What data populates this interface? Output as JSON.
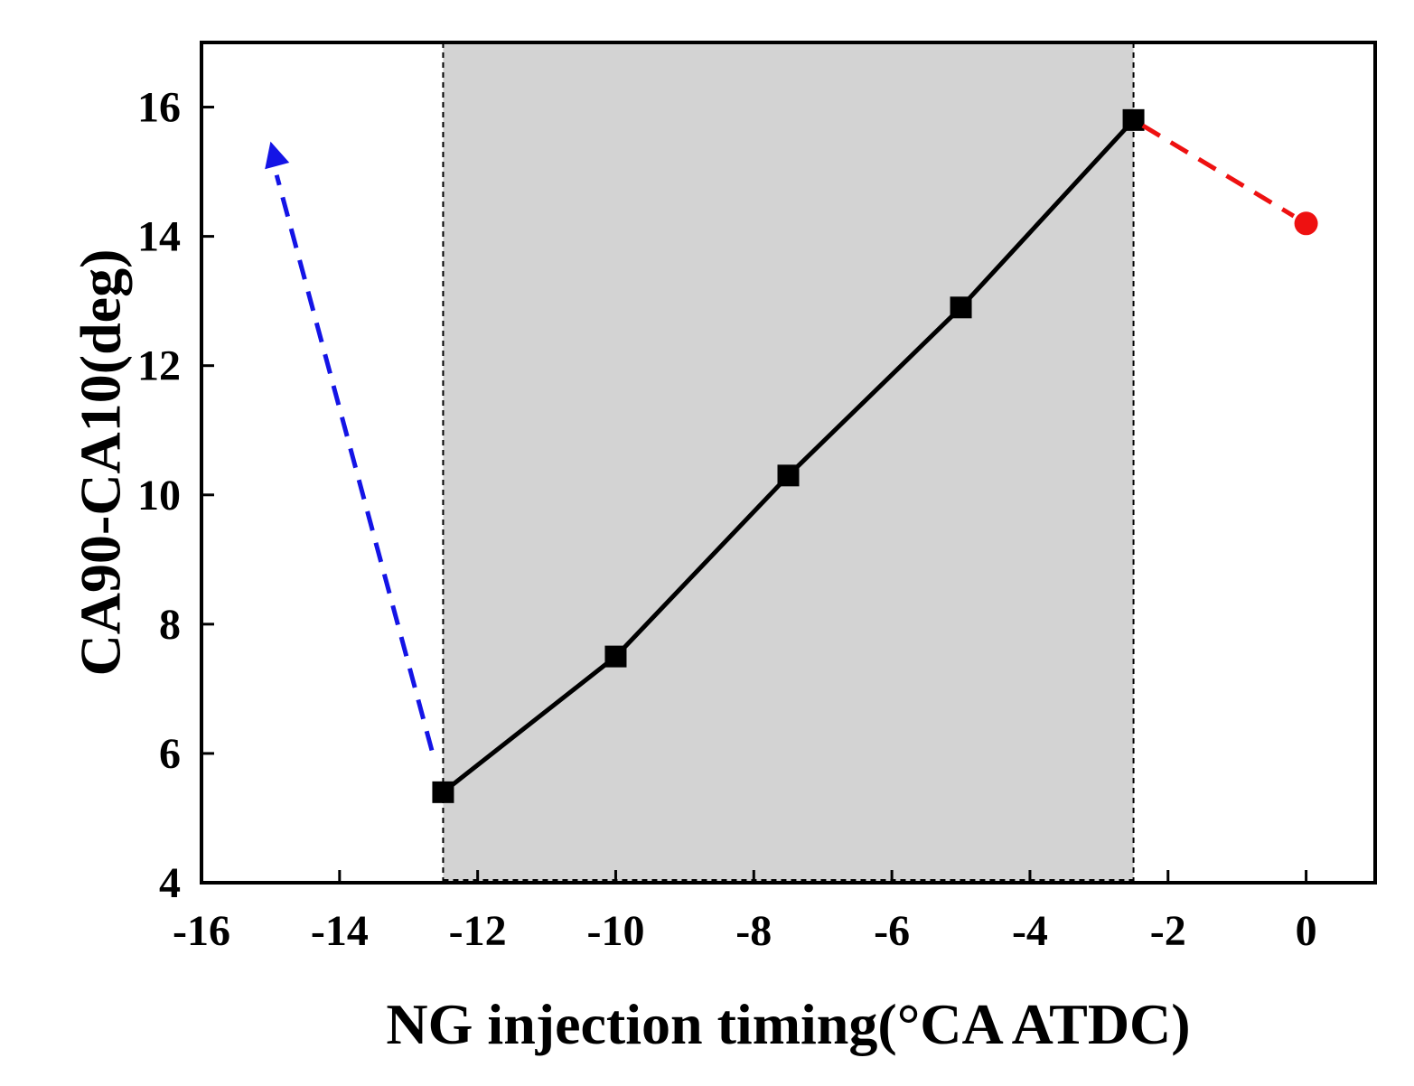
{
  "chart_data": {
    "type": "line",
    "title": "",
    "xlabel": "NG injection timing(°CA  ATDC)",
    "ylabel": "CA90-CA10(deg)",
    "xlim": [
      -16,
      1
    ],
    "ylim": [
      4,
      17
    ],
    "xticks": [
      -16,
      -14,
      -12,
      -10,
      -8,
      -6,
      -4,
      -2,
      0
    ],
    "yticks": [
      4,
      6,
      8,
      10,
      12,
      14,
      16
    ],
    "grid": false,
    "legend": "none",
    "shaded_region": {
      "x": [
        -12.5,
        -2.5
      ],
      "color": "#d3d3d3"
    },
    "reference_lines": [
      -12.5,
      -2.5
    ],
    "series": [
      {
        "name": "main",
        "style": "solid",
        "marker": "square",
        "color": "#000000",
        "x": [
          -12.5,
          -10,
          -7.5,
          -5,
          -2.5
        ],
        "y": [
          5.4,
          7.5,
          10.3,
          12.9,
          15.8
        ]
      },
      {
        "name": "early trend",
        "style": "dashed",
        "marker": "arrow",
        "color": "#1414e6",
        "x": [
          -12.5,
          -15
        ],
        "y": [
          5.4,
          15.3
        ]
      },
      {
        "name": "late trend",
        "style": "dashed",
        "marker": "circle",
        "color": "#ee1111",
        "x": [
          -2.5,
          0
        ],
        "y": [
          15.8,
          14.2
        ]
      }
    ]
  }
}
